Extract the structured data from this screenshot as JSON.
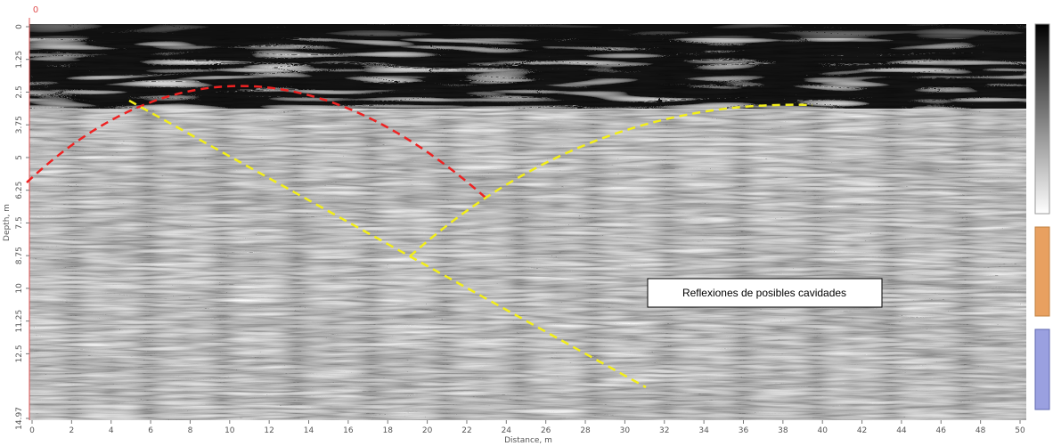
{
  "origin_label": "0",
  "x_axis": {
    "label": "Distance, m",
    "lim": [
      0,
      50
    ],
    "ticks": [
      0,
      2,
      4,
      6,
      8,
      10,
      12,
      14,
      16,
      18,
      20,
      22,
      24,
      26,
      28,
      30,
      32,
      34,
      36,
      38,
      40,
      42,
      44,
      46,
      48,
      50
    ]
  },
  "y_axis": {
    "label": "Depth, m",
    "lim": [
      0,
      14.97
    ],
    "ticks": [
      0,
      1.25,
      2.5,
      3.75,
      5,
      6.25,
      7.5,
      8.75,
      10,
      11.25,
      12.5,
      14.97
    ]
  },
  "annotation": "Reflexiones de posibles cavidades"
}
